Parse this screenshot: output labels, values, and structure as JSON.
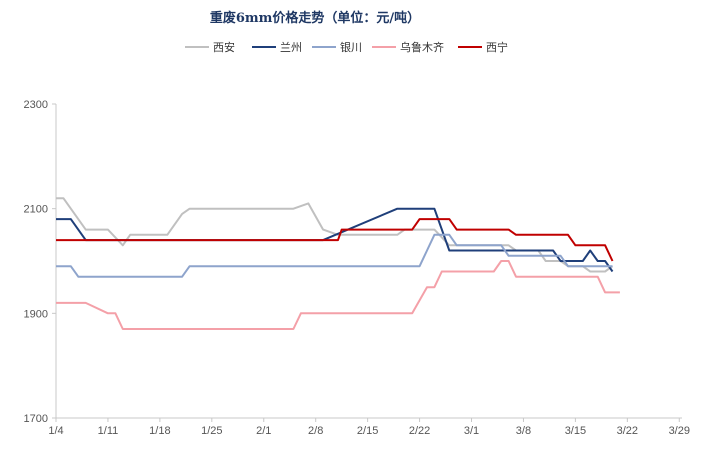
{
  "chart_data": {
    "type": "line",
    "title": "重废6mm价格走势（单位：元/吨）",
    "xlabel": "",
    "ylabel": "",
    "ylim": [
      1700,
      2300
    ],
    "yticks": [
      1700,
      1900,
      2100,
      2300
    ],
    "xlim": [
      0,
      88
    ],
    "xticks": [
      {
        "pos": 0,
        "label": "1/4"
      },
      {
        "pos": 7,
        "label": "1/11"
      },
      {
        "pos": 14,
        "label": "1/18"
      },
      {
        "pos": 21,
        "label": "1/25"
      },
      {
        "pos": 28,
        "label": "2/1"
      },
      {
        "pos": 35,
        "label": "2/8"
      },
      {
        "pos": 42,
        "label": "2/15"
      },
      {
        "pos": 49,
        "label": "2/22"
      },
      {
        "pos": 56,
        "label": "3/1"
      },
      {
        "pos": 63,
        "label": "3/8"
      },
      {
        "pos": 70,
        "label": "3/15"
      },
      {
        "pos": 77,
        "label": "3/22"
      },
      {
        "pos": 84,
        "label": "3/29"
      }
    ],
    "grid": false,
    "legend_position": "top",
    "series": [
      {
        "name": "西安",
        "color": "#c0c0c0",
        "points": [
          [
            0,
            2120
          ],
          [
            1,
            2120
          ],
          [
            4,
            2060
          ],
          [
            7,
            2060
          ],
          [
            9,
            2030
          ],
          [
            10,
            2050
          ],
          [
            15,
            2050
          ],
          [
            17,
            2090
          ],
          [
            18,
            2100
          ],
          [
            32,
            2100
          ],
          [
            34,
            2110
          ],
          [
            36,
            2060
          ],
          [
            38,
            2050
          ],
          [
            46,
            2050
          ],
          [
            47,
            2060
          ],
          [
            51,
            2060
          ],
          [
            53,
            2030
          ],
          [
            61,
            2030
          ],
          [
            62,
            2020
          ],
          [
            65,
            2020
          ],
          [
            66,
            2000
          ],
          [
            68,
            2000
          ],
          [
            69,
            1990
          ],
          [
            71,
            1990
          ],
          [
            72,
            1980
          ],
          [
            74,
            1980
          ],
          [
            75,
            1990
          ]
        ]
      },
      {
        "name": "兰州",
        "color": "#1f3f7a",
        "points": [
          [
            0,
            2080
          ],
          [
            2,
            2080
          ],
          [
            4,
            2040
          ],
          [
            36,
            2040
          ],
          [
            46,
            2100
          ],
          [
            51,
            2100
          ],
          [
            53,
            2020
          ],
          [
            67,
            2020
          ],
          [
            68,
            2000
          ],
          [
            71,
            2000
          ],
          [
            72,
            2020
          ],
          [
            73,
            2000
          ],
          [
            74,
            2000
          ],
          [
            75,
            1980
          ]
        ]
      },
      {
        "name": "银川",
        "color": "#8ea4cc",
        "points": [
          [
            0,
            1990
          ],
          [
            2,
            1990
          ],
          [
            3,
            1970
          ],
          [
            17,
            1970
          ],
          [
            18,
            1990
          ],
          [
            49,
            1990
          ],
          [
            50,
            2020
          ],
          [
            51,
            2050
          ],
          [
            53,
            2050
          ],
          [
            54,
            2030
          ],
          [
            60,
            2030
          ],
          [
            61,
            2010
          ],
          [
            68,
            2010
          ],
          [
            69,
            1990
          ],
          [
            75,
            1990
          ]
        ]
      },
      {
        "name": "乌鲁木齐",
        "color": "#f4a0a8",
        "points": [
          [
            0,
            1920
          ],
          [
            4,
            1920
          ],
          [
            7,
            1900
          ],
          [
            8,
            1900
          ],
          [
            9,
            1870
          ],
          [
            32,
            1870
          ],
          [
            33,
            1900
          ],
          [
            48,
            1900
          ],
          [
            50,
            1950
          ],
          [
            51,
            1950
          ],
          [
            52,
            1980
          ],
          [
            59,
            1980
          ],
          [
            60,
            2000
          ],
          [
            61,
            2000
          ],
          [
            62,
            1970
          ],
          [
            73,
            1970
          ],
          [
            74,
            1940
          ],
          [
            76,
            1940
          ]
        ]
      },
      {
        "name": "西宁",
        "color": "#c00000",
        "points": [
          [
            0,
            2040
          ],
          [
            38,
            2040
          ],
          [
            38.5,
            2060
          ],
          [
            48,
            2060
          ],
          [
            49,
            2080
          ],
          [
            53,
            2080
          ],
          [
            54,
            2060
          ],
          [
            61,
            2060
          ],
          [
            62,
            2050
          ],
          [
            69,
            2050
          ],
          [
            70,
            2030
          ],
          [
            74,
            2030
          ],
          [
            75,
            2000
          ]
        ]
      }
    ]
  }
}
